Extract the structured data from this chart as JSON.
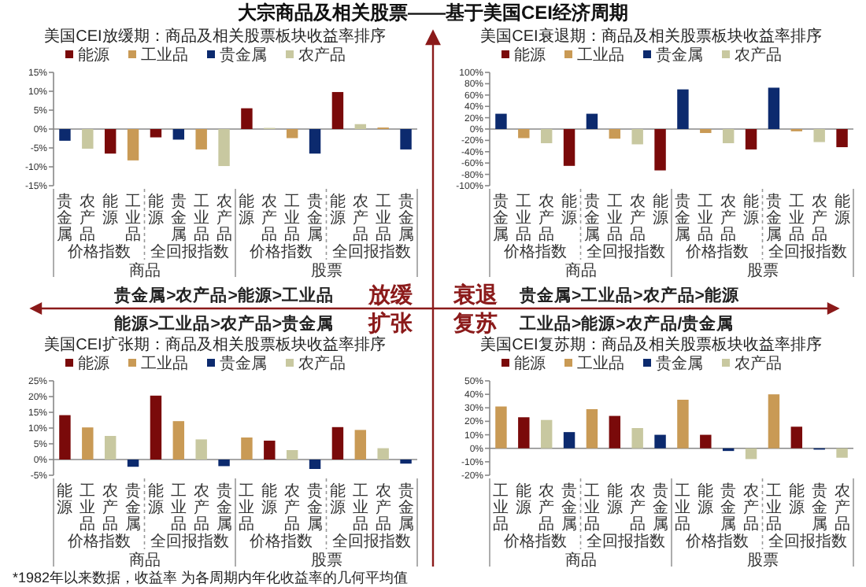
{
  "chart_data": [
    {
      "type": "other",
      "title": "大宗商品及相关股票——基于美国CEI经济周期",
      "annotations": [
        "贵金属>农产品>能源>工业品",
        "放缓",
        "衰退",
        "贵金属>工业品>农产品>能源",
        "能源>工业品>农产品>贵金属",
        "扩张",
        "复苏",
        "工业品>能源>农产品/贵金属",
        "*1982年以来数据，收益率 为各周期内年化收益率的几何平均值"
      ]
    },
    {
      "type": "bar",
      "title": "美国CEI放缓期：商品及相关股票板块收益率排序",
      "legend": "top",
      "categories": [
        "贵金属",
        "农产品",
        "能源",
        "工业品",
        "能源",
        "贵金属",
        "工业品",
        "农产品",
        "能源",
        "农产品",
        "工业品",
        "贵金属",
        "能源",
        "农产品",
        "工业品",
        "贵金属"
      ],
      "series": [
        {
          "name": "能源",
          "color": "#7a0a0a",
          "values": [
            null,
            null,
            -6.5,
            null,
            -2.2,
            null,
            null,
            null,
            5.5,
            null,
            null,
            null,
            9.8,
            null,
            null,
            null
          ]
        },
        {
          "name": "工业品",
          "color": "#c99a55",
          "values": [
            null,
            null,
            null,
            -8.3,
            null,
            null,
            -5.4,
            null,
            null,
            null,
            -2.4,
            null,
            null,
            null,
            0.4,
            null
          ]
        },
        {
          "name": "贵金属",
          "color": "#0c2a6e",
          "values": [
            -3.1,
            null,
            null,
            null,
            null,
            -2.8,
            null,
            null,
            null,
            null,
            null,
            -6.5,
            null,
            null,
            null,
            -5.4
          ]
        },
        {
          "name": "农产品",
          "color": "#c8c8a0",
          "values": [
            null,
            -5.2,
            null,
            null,
            null,
            null,
            null,
            -9.8,
            null,
            0.3,
            null,
            null,
            null,
            1.3,
            null,
            null
          ]
        }
      ],
      "ylim": [
        -15,
        15
      ],
      "yticks": [
        {
          "value": -15,
          "label": "-15%"
        },
        {
          "value": -10,
          "label": "-10%"
        },
        {
          "value": -5,
          "label": "-5%"
        },
        {
          "value": 0,
          "label": "0%"
        },
        {
          "value": 5,
          "label": "5%"
        },
        {
          "value": 10,
          "label": "10%"
        },
        {
          "value": 15,
          "label": "15%"
        }
      ],
      "annotations": [
        "价格指数",
        "全回报指数",
        "价格指数",
        "全回报指数",
        "商品",
        "股票"
      ]
    },
    {
      "type": "bar",
      "title": "美国CEI衰退期：商品及相关股票板块收益率排序",
      "legend": "top",
      "categories": [
        "贵金属",
        "工业品",
        "农产品",
        "能源",
        "贵金属",
        "工业品",
        "农产品",
        "能源",
        "贵金属",
        "工业品",
        "农产品",
        "能源",
        "贵金属",
        "工业品",
        "农产品",
        "能源"
      ],
      "series": [
        {
          "name": "能源",
          "color": "#7a0a0a",
          "values": [
            null,
            null,
            null,
            -65,
            null,
            null,
            null,
            -73,
            null,
            null,
            null,
            -36,
            null,
            null,
            null,
            -32
          ]
        },
        {
          "name": "工业品",
          "color": "#c99a55",
          "values": [
            null,
            -16,
            null,
            null,
            null,
            -17,
            null,
            null,
            null,
            -7,
            null,
            null,
            null,
            -4,
            null,
            null
          ]
        },
        {
          "name": "贵金属",
          "color": "#0c2a6e",
          "values": [
            27,
            null,
            null,
            null,
            27,
            null,
            null,
            null,
            70,
            null,
            null,
            null,
            73,
            null,
            null,
            null
          ]
        },
        {
          "name": "农产品",
          "color": "#c8c8a0",
          "values": [
            null,
            null,
            -25,
            null,
            null,
            null,
            -27,
            null,
            null,
            null,
            -25,
            null,
            null,
            null,
            -23,
            null
          ]
        }
      ],
      "ylim": [
        -100,
        100
      ],
      "yticks": [
        {
          "value": -100,
          "label": "-100%"
        },
        {
          "value": -80,
          "label": "-80%"
        },
        {
          "value": -60,
          "label": "-60%"
        },
        {
          "value": -40,
          "label": "-40%"
        },
        {
          "value": -20,
          "label": "-20%"
        },
        {
          "value": 0,
          "label": "0%"
        },
        {
          "value": 20,
          "label": "20%"
        },
        {
          "value": 40,
          "label": "40%"
        },
        {
          "value": 60,
          "label": "60%"
        },
        {
          "value": 80,
          "label": "80%"
        },
        {
          "value": 100,
          "label": "100%"
        }
      ],
      "annotations": [
        "价格指数",
        "全回报指数",
        "价格指数",
        "全回报指数",
        "商品",
        "股票"
      ]
    },
    {
      "type": "bar",
      "title": "美国CEI扩张期：商品及相关股票板块收益率排序",
      "legend": "top",
      "categories": [
        "能源",
        "工业品",
        "农产品",
        "贵金属",
        "能源",
        "工业品",
        "农产品",
        "贵金属",
        "工业品",
        "能源",
        "农产品",
        "贵金属",
        "能源",
        "工业品",
        "农产品",
        "贵金属"
      ],
      "series": [
        {
          "name": "能源",
          "color": "#7a0a0a",
          "values": [
            14.1,
            null,
            null,
            null,
            20.3,
            null,
            null,
            null,
            null,
            6,
            null,
            null,
            10.3,
            null,
            null,
            null
          ]
        },
        {
          "name": "工业品",
          "color": "#c99a55",
          "values": [
            null,
            10.2,
            null,
            null,
            null,
            12.2,
            null,
            null,
            7,
            null,
            null,
            null,
            null,
            9.4,
            null,
            null
          ]
        },
        {
          "name": "贵金属",
          "color": "#0c2a6e",
          "values": [
            null,
            null,
            null,
            -2.3,
            null,
            null,
            null,
            -2.1,
            null,
            null,
            null,
            -3,
            null,
            null,
            null,
            -1.3
          ]
        },
        {
          "name": "农产品",
          "color": "#c8c8a0",
          "values": [
            null,
            null,
            7.5,
            null,
            null,
            null,
            6.4,
            null,
            null,
            null,
            3,
            null,
            null,
            null,
            3.6,
            null
          ]
        }
      ],
      "ylim": [
        -5,
        25
      ],
      "yticks": [
        {
          "value": -5,
          "label": "-5%"
        },
        {
          "value": 0,
          "label": "0%"
        },
        {
          "value": 5,
          "label": "5%"
        },
        {
          "value": 10,
          "label": "10%"
        },
        {
          "value": 15,
          "label": "15%"
        },
        {
          "value": 20,
          "label": "20%"
        },
        {
          "value": 25,
          "label": "25%"
        }
      ],
      "annotations": [
        "价格指数",
        "全回报指数",
        "价格指数",
        "全回报指数",
        "商品",
        "股票"
      ]
    },
    {
      "type": "bar",
      "title": "美国CEI复苏期：商品及相关股票板块收益率排序",
      "legend": "top",
      "categories": [
        "工业品",
        "能源",
        "农产品",
        "贵金属",
        "工业品",
        "能源",
        "农产品",
        "贵金属",
        "工业品",
        "能源",
        "贵金属",
        "农产品",
        "工业品",
        "能源",
        "贵金属",
        "农产品"
      ],
      "series": [
        {
          "name": "能源",
          "color": "#7a0a0a",
          "values": [
            null,
            23,
            null,
            null,
            null,
            24,
            null,
            null,
            null,
            10,
            null,
            null,
            null,
            16,
            null,
            null
          ]
        },
        {
          "name": "工业品",
          "color": "#c99a55",
          "values": [
            31,
            null,
            null,
            null,
            29,
            null,
            null,
            null,
            36,
            null,
            null,
            null,
            40,
            null,
            null,
            null
          ]
        },
        {
          "name": "贵金属",
          "color": "#0c2a6e",
          "values": [
            null,
            null,
            null,
            12,
            null,
            null,
            null,
            10,
            null,
            null,
            -2,
            null,
            null,
            null,
            -1,
            null
          ]
        },
        {
          "name": "农产品",
          "color": "#c8c8a0",
          "values": [
            null,
            null,
            21,
            null,
            null,
            null,
            15,
            null,
            null,
            null,
            null,
            -8,
            null,
            null,
            null,
            -7
          ]
        }
      ],
      "ylim": [
        -20,
        50
      ],
      "yticks": [
        {
          "value": -20,
          "label": "-20%"
        },
        {
          "value": -10,
          "label": "-10%"
        },
        {
          "value": 0,
          "label": "0%"
        },
        {
          "value": 10,
          "label": "10%"
        },
        {
          "value": 20,
          "label": "20%"
        },
        {
          "value": 30,
          "label": "30%"
        },
        {
          "value": 40,
          "label": "40%"
        },
        {
          "value": 50,
          "label": "50%"
        }
      ],
      "annotations": [
        "价格指数",
        "全回报指数",
        "价格指数",
        "全回报指数",
        "商品",
        "股票"
      ]
    }
  ]
}
